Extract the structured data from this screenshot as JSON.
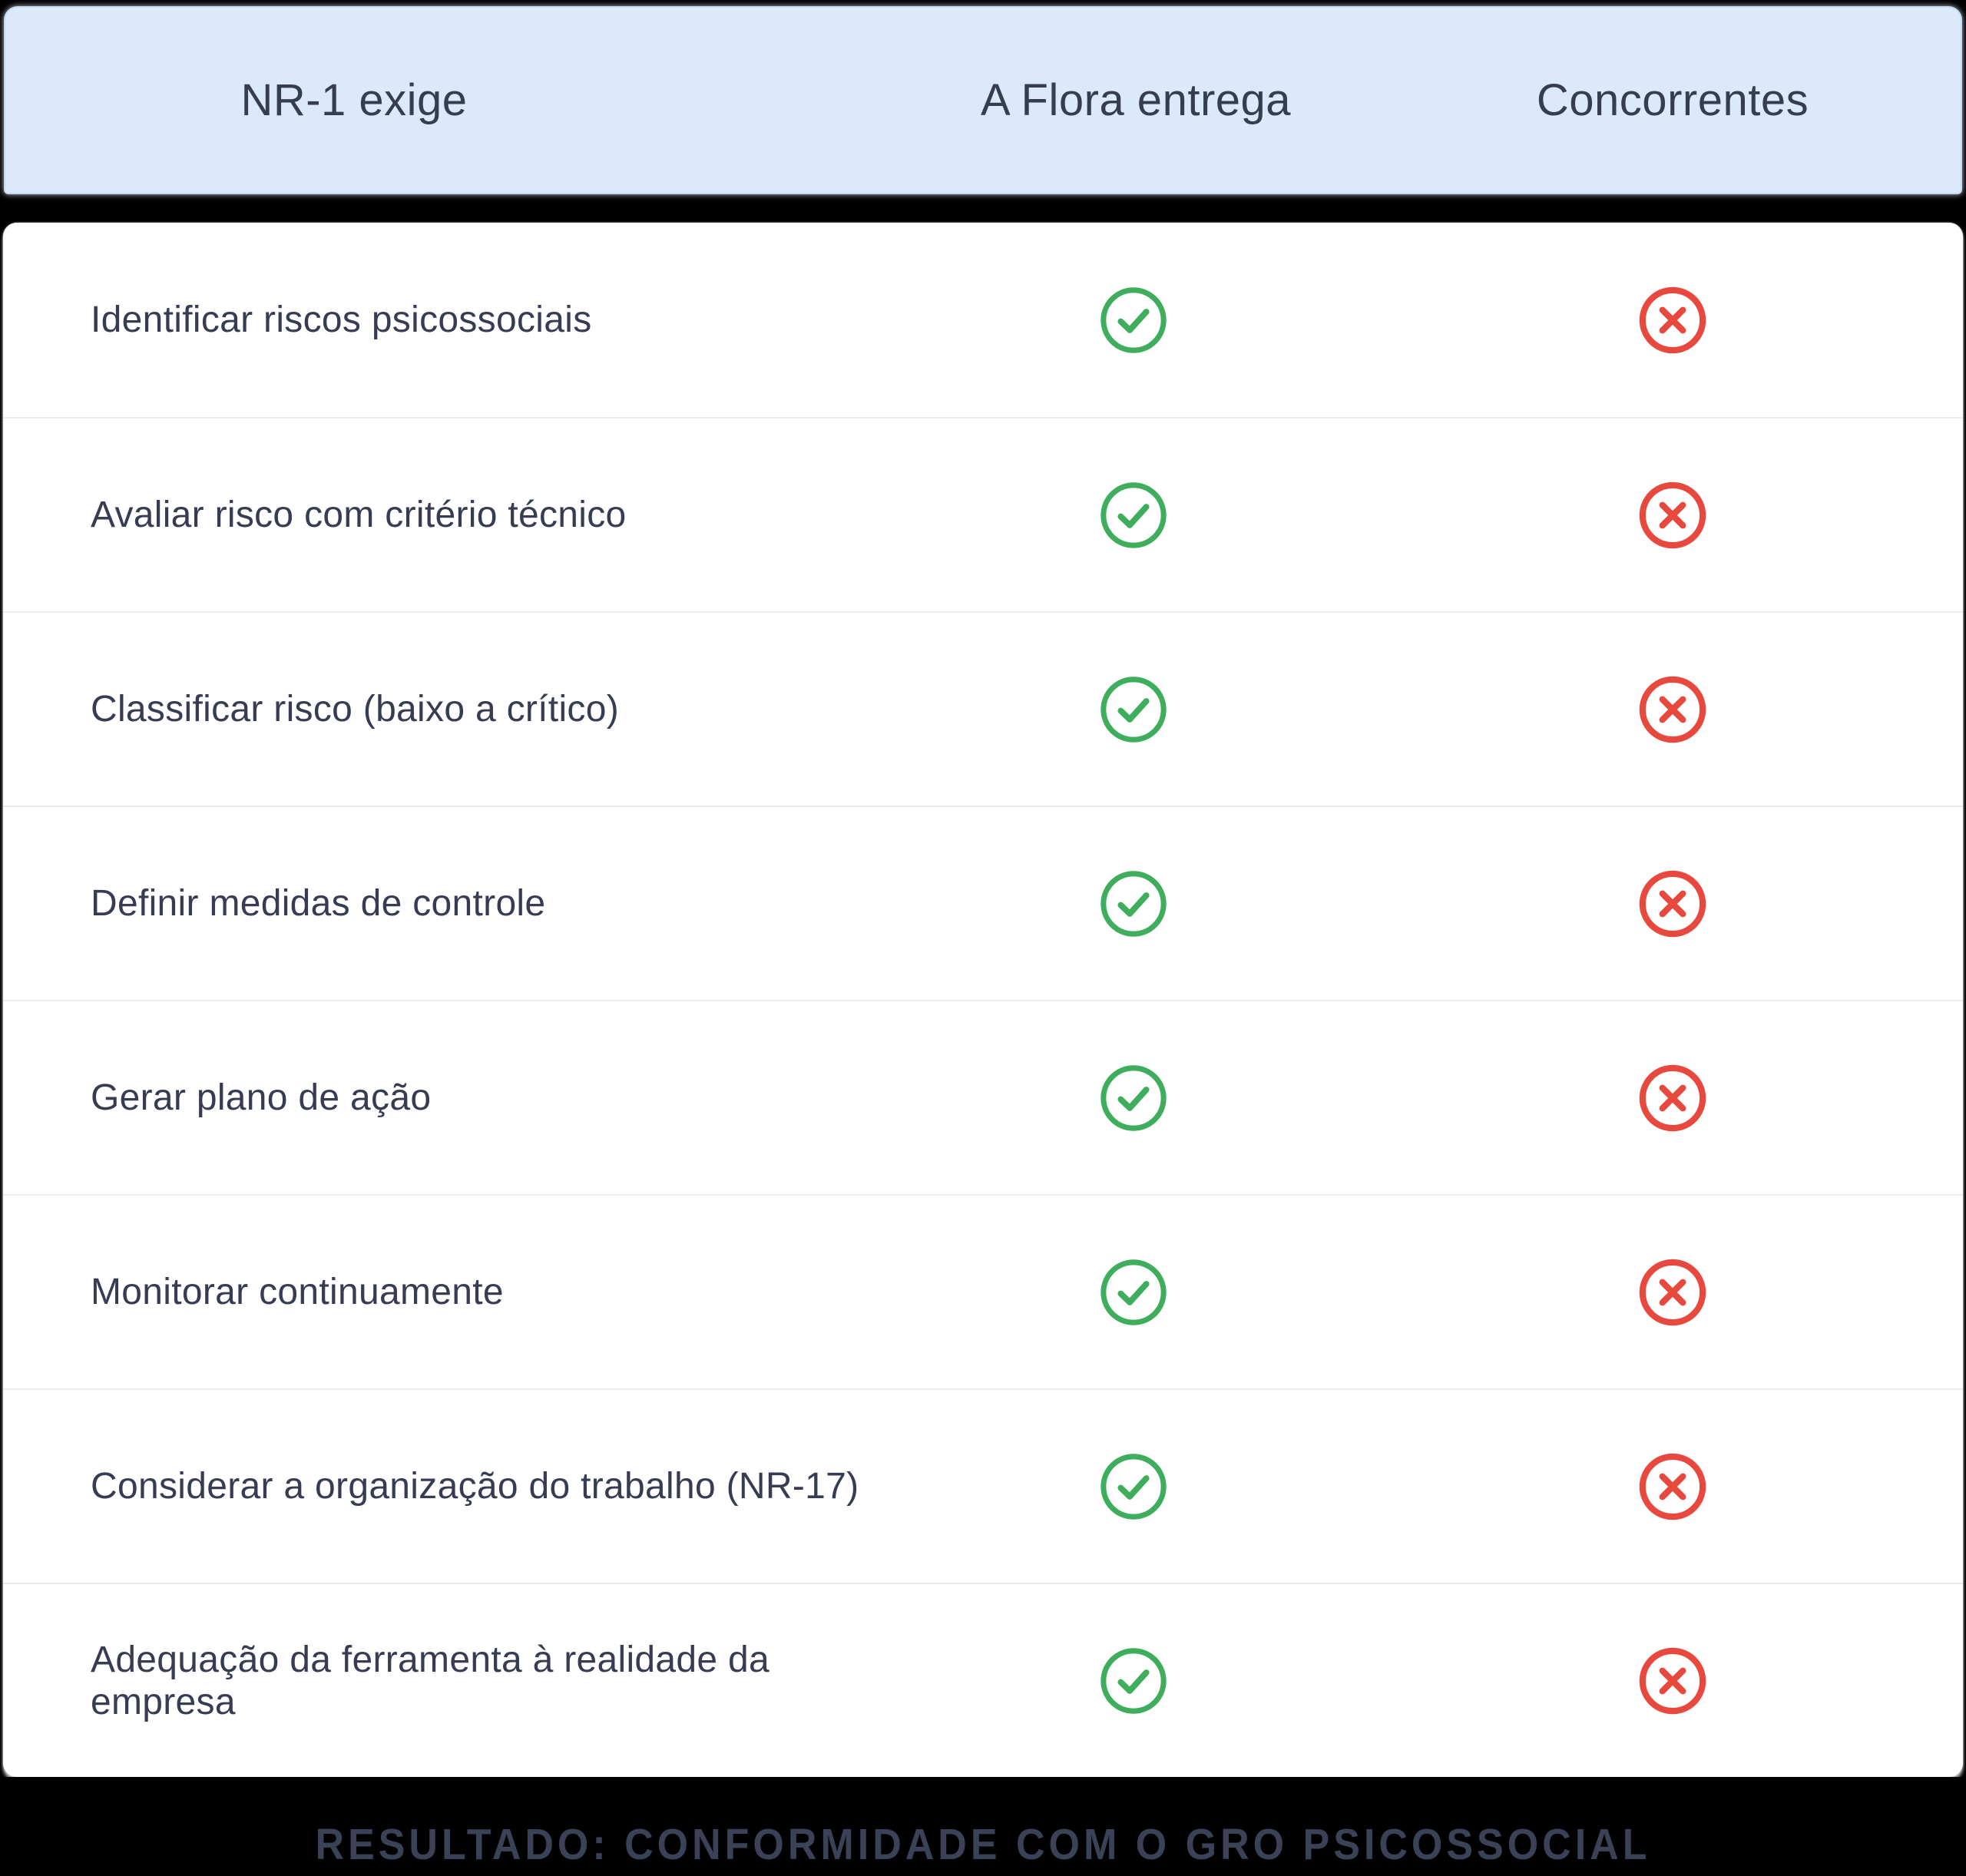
{
  "table": {
    "columns": [
      {
        "label": "NR-1 exige"
      },
      {
        "label": "A Flora entrega"
      },
      {
        "label": "Concorrentes"
      }
    ],
    "rows": [
      {
        "label": "Identificar riscos psicossociais",
        "flora": "check",
        "concorrentes": "cross"
      },
      {
        "label": "Avaliar risco com critério técnico",
        "flora": "check",
        "concorrentes": "cross"
      },
      {
        "label": "Classificar risco (baixo a crítico)",
        "flora": "check",
        "concorrentes": "cross"
      },
      {
        "label": "Definir medidas de controle",
        "flora": "check",
        "concorrentes": "cross"
      },
      {
        "label": "Gerar plano de ação",
        "flora": "check",
        "concorrentes": "cross"
      },
      {
        "label": "Monitorar continuamente",
        "flora": "check",
        "concorrentes": "cross"
      },
      {
        "label": "Considerar a organização do trabalho (NR-17)",
        "flora": "check",
        "concorrentes": "cross"
      },
      {
        "label": "Adequação da ferramenta à realidade da empresa",
        "flora": "check",
        "concorrentes": "cross"
      }
    ]
  },
  "footer": {
    "label": "RESULTADO: CONFORMIDADE COM O GRO PSICOSSOCIAL"
  },
  "icons": {
    "check": "check-circle-icon",
    "cross": "x-circle-icon"
  },
  "colors": {
    "page_bg": "#000000",
    "header_bg": "#DBE9FB",
    "header_border": "#C6D9F0",
    "card_bg": "#FFFFFF",
    "text": "#363C52",
    "separator": "#ECECEC",
    "check_green": "#3EAD5C",
    "cross_red": "#E8493F",
    "footer_text": "#3A4258"
  },
  "chart_data": {
    "type": "table",
    "title": "",
    "columns": [
      "NR-1 exige",
      "A Flora entrega",
      "Concorrentes"
    ],
    "rows": [
      [
        "Identificar riscos psicossociais",
        "✓",
        "✗"
      ],
      [
        "Avaliar risco com critério técnico",
        "✓",
        "✗"
      ],
      [
        "Classificar risco (baixo a crítico)",
        "✓",
        "✗"
      ],
      [
        "Definir medidas de controle",
        "✓",
        "✗"
      ],
      [
        "Gerar plano de ação",
        "✓",
        "✗"
      ],
      [
        "Monitorar continuamente",
        "✓",
        "✗"
      ],
      [
        "Considerar a organização do trabalho (NR-17)",
        "✓",
        "✗"
      ],
      [
        "Adequação da ferramenta à realidade da empresa",
        "✓",
        "✗"
      ]
    ],
    "annotations": [
      "RESULTADO: CONFORMIDADE COM O GRO PSICOSSOCIAL"
    ],
    "legend_position": "none",
    "grid": "row-separators"
  }
}
